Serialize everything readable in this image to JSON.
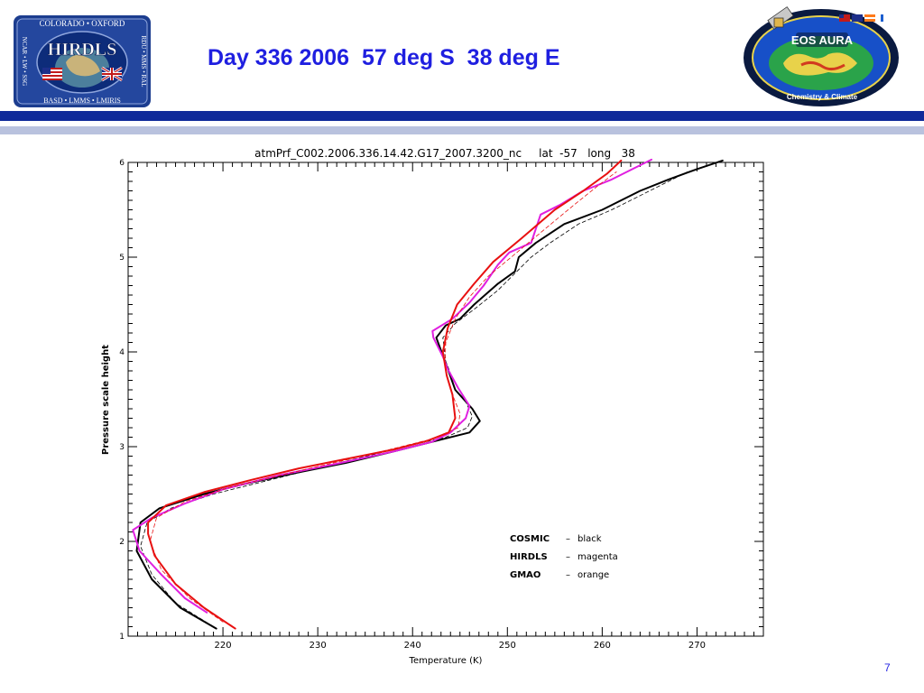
{
  "slide": {
    "title": "Day 336 2006  57 deg S  38 deg E",
    "page_number": "7"
  },
  "logos": {
    "hirdls": {
      "top_text": "COLORADO • OXFORD",
      "left_text": "NCAR • LW • SSG",
      "right_text": "RDU • MMS • RAL",
      "bottom_text": "BASD • LMMS • LMIRIS",
      "name": "HIRDLS"
    },
    "aura": {
      "name": "EOS AURA",
      "tagline": "Chemistry & Climate"
    }
  },
  "colors": {
    "title_blue": "#1f1fe0",
    "rule_dark": "#0f2a9a",
    "rule_light": "#b9c2de",
    "cosmic": "#000000",
    "hirdls": "#e020e0",
    "gmao": "#e81010"
  },
  "chart_data": {
    "type": "line",
    "title": "atmPrf_C002.2006.336.14.42.G17_2007.3200_nc     lat  -57   long   38",
    "xlabel": "Temperature (K)",
    "ylabel": "Pressure scale height",
    "xlim": [
      210,
      277
    ],
    "ylim": [
      1,
      6
    ],
    "xticks": [
      220,
      230,
      240,
      250,
      260,
      270
    ],
    "yticks": [
      1,
      2,
      3,
      4,
      5,
      6
    ],
    "legend": {
      "placement": "bottom-right",
      "entries": [
        {
          "name": "COSMIC",
          "sep": "–",
          "color_name": "black"
        },
        {
          "name": "HIRDLS",
          "sep": "–",
          "color_name": "magenta"
        },
        {
          "name": "GMAO",
          "sep": "–",
          "color_name": "orange"
        }
      ]
    },
    "series": [
      {
        "name": "COSMIC",
        "color": "#000000",
        "width": 2,
        "points": [
          [
            219.3,
            1.08
          ],
          [
            215.5,
            1.3
          ],
          [
            212.5,
            1.6
          ],
          [
            210.9,
            1.9
          ],
          [
            211.3,
            2.2
          ],
          [
            213.3,
            2.35
          ],
          [
            218,
            2.5
          ],
          [
            222,
            2.6
          ],
          [
            228,
            2.73
          ],
          [
            233,
            2.83
          ],
          [
            238,
            2.95
          ],
          [
            242,
            3.05
          ],
          [
            246,
            3.15
          ],
          [
            247.1,
            3.27
          ],
          [
            246.3,
            3.4
          ],
          [
            244.5,
            3.6
          ],
          [
            243.6,
            3.85
          ],
          [
            242.5,
            4.15
          ],
          [
            243.5,
            4.28
          ],
          [
            245,
            4.35
          ],
          [
            246.5,
            4.5
          ],
          [
            249,
            4.72
          ],
          [
            250.8,
            4.85
          ],
          [
            251.2,
            5.0
          ],
          [
            253,
            5.15
          ],
          [
            256,
            5.35
          ],
          [
            260,
            5.5
          ],
          [
            262,
            5.6
          ],
          [
            264,
            5.7
          ],
          [
            267,
            5.82
          ],
          [
            270,
            5.93
          ],
          [
            272.7,
            6.02
          ]
        ]
      },
      {
        "name": "COSMIC",
        "color": "#000000",
        "width": 0.8,
        "dash": "4,3",
        "points": [
          [
            219,
            1.1
          ],
          [
            215,
            1.35
          ],
          [
            212.5,
            1.65
          ],
          [
            211.3,
            1.95
          ],
          [
            212,
            2.2
          ],
          [
            214.5,
            2.35
          ],
          [
            219,
            2.5
          ],
          [
            225,
            2.65
          ],
          [
            231,
            2.8
          ],
          [
            236,
            2.92
          ],
          [
            240,
            3.02
          ],
          [
            243.5,
            3.1
          ],
          [
            245.8,
            3.2
          ],
          [
            246.3,
            3.32
          ],
          [
            245.5,
            3.5
          ],
          [
            244.3,
            3.7
          ],
          [
            243.5,
            3.9
          ],
          [
            243.2,
            4.15
          ],
          [
            244.5,
            4.3
          ],
          [
            246.5,
            4.45
          ],
          [
            249,
            4.65
          ],
          [
            251,
            4.85
          ],
          [
            252.5,
            5.0
          ],
          [
            254.5,
            5.15
          ],
          [
            257.5,
            5.35
          ],
          [
            261,
            5.5
          ],
          [
            264,
            5.65
          ],
          [
            267,
            5.8
          ],
          [
            269,
            5.9
          ]
        ]
      },
      {
        "name": "HIRDLS",
        "color": "#e020e0",
        "width": 2,
        "points": [
          [
            218.3,
            1.25
          ],
          [
            216,
            1.4
          ],
          [
            213.5,
            1.65
          ],
          [
            211.2,
            1.9
          ],
          [
            210.5,
            2.12
          ],
          [
            212.5,
            2.25
          ],
          [
            216,
            2.4
          ],
          [
            220,
            2.55
          ],
          [
            226,
            2.7
          ],
          [
            232,
            2.82
          ],
          [
            238,
            2.95
          ],
          [
            242,
            3.05
          ],
          [
            244,
            3.15
          ],
          [
            245.6,
            3.3
          ],
          [
            246,
            3.43
          ],
          [
            244.8,
            3.62
          ],
          [
            243.7,
            3.82
          ],
          [
            243.2,
            3.95
          ],
          [
            242.2,
            4.15
          ],
          [
            242.1,
            4.22
          ],
          [
            244.2,
            4.35
          ],
          [
            246,
            4.52
          ],
          [
            247.5,
            4.7
          ],
          [
            249,
            4.92
          ],
          [
            250.2,
            5.05
          ],
          [
            252.5,
            5.15
          ],
          [
            253.5,
            5.45
          ],
          [
            255.5,
            5.55
          ],
          [
            258,
            5.7
          ],
          [
            261,
            5.82
          ],
          [
            263,
            5.92
          ],
          [
            265.2,
            6.03
          ]
        ]
      },
      {
        "name": "GMAO",
        "color": "#e81010",
        "width": 2,
        "points": [
          [
            221.3,
            1.08
          ],
          [
            218,
            1.3
          ],
          [
            215,
            1.55
          ],
          [
            212.8,
            1.85
          ],
          [
            212.1,
            2.08
          ],
          [
            212.1,
            2.2
          ],
          [
            214,
            2.38
          ],
          [
            218,
            2.52
          ],
          [
            223,
            2.65
          ],
          [
            228,
            2.77
          ],
          [
            233,
            2.87
          ],
          [
            238,
            2.97
          ],
          [
            241.5,
            3.06
          ],
          [
            243.8,
            3.15
          ],
          [
            244.5,
            3.3
          ],
          [
            244.2,
            3.55
          ],
          [
            243.6,
            3.75
          ],
          [
            243.2,
            4.0
          ],
          [
            243.7,
            4.25
          ],
          [
            244.7,
            4.5
          ],
          [
            246.5,
            4.72
          ],
          [
            248.5,
            4.95
          ],
          [
            251.5,
            5.2
          ],
          [
            255,
            5.5
          ],
          [
            258,
            5.7
          ],
          [
            260.5,
            5.88
          ],
          [
            262,
            6.02
          ]
        ]
      },
      {
        "name": "GMAO",
        "color": "#e81010",
        "width": 0.8,
        "dash": "4,3",
        "points": [
          [
            220,
            1.15
          ],
          [
            216.5,
            1.4
          ],
          [
            213.5,
            1.7
          ],
          [
            212.3,
            2.0
          ],
          [
            213,
            2.25
          ],
          [
            216,
            2.42
          ],
          [
            221,
            2.58
          ],
          [
            227,
            2.72
          ],
          [
            233,
            2.86
          ],
          [
            238,
            2.98
          ],
          [
            242,
            3.08
          ],
          [
            244.8,
            3.2
          ],
          [
            245,
            3.35
          ],
          [
            244,
            3.6
          ],
          [
            243.4,
            3.85
          ],
          [
            243.5,
            4.1
          ],
          [
            244.5,
            4.35
          ],
          [
            246,
            4.58
          ],
          [
            248,
            4.8
          ],
          [
            251,
            5.05
          ],
          [
            254,
            5.3
          ],
          [
            257,
            5.55
          ],
          [
            259.5,
            5.75
          ],
          [
            261.5,
            5.9
          ]
        ]
      }
    ]
  }
}
